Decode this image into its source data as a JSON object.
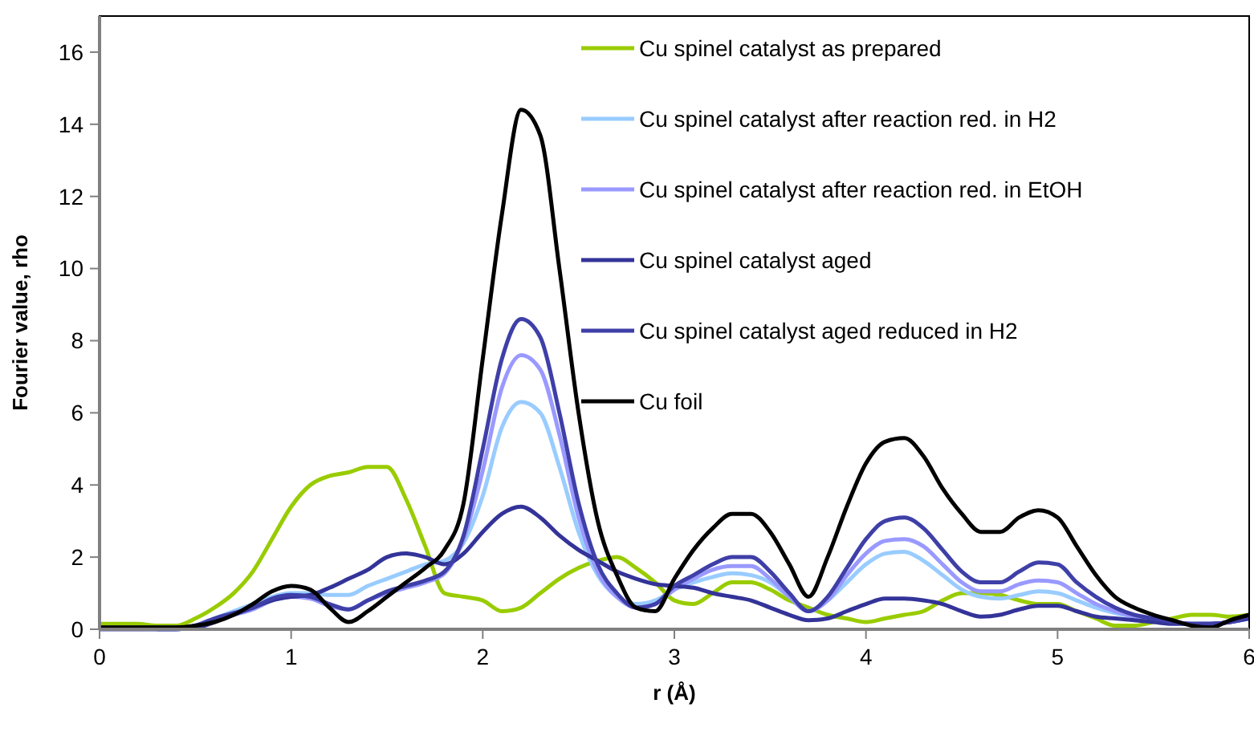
{
  "chart_data": {
    "type": "line",
    "xlabel": "r (Å)",
    "ylabel": "Fourier value, rho",
    "xlim": [
      0,
      6
    ],
    "ylim": [
      0,
      17
    ],
    "xticks": [
      0,
      1,
      2,
      3,
      4,
      5,
      6
    ],
    "yticks": [
      0,
      2,
      4,
      6,
      8,
      10,
      12,
      14,
      16
    ],
    "grid": false,
    "legend": "top right",
    "marker": "none",
    "line_style": "solid",
    "x": [
      0,
      0.1,
      0.2,
      0.3,
      0.4,
      0.5,
      0.6,
      0.7,
      0.8,
      0.9,
      1,
      1.1,
      1.2,
      1.3,
      1.4,
      1.5,
      1.6,
      1.7,
      1.8,
      1.9,
      2,
      2.1,
      2.2,
      2.3,
      2.4,
      2.5,
      2.6,
      2.7,
      2.8,
      2.9,
      3,
      3.1,
      3.2,
      3.3,
      3.4,
      3.5,
      3.6,
      3.7,
      3.8,
      3.9,
      4,
      4.1,
      4.2,
      4.3,
      4.4,
      4.5,
      4.6,
      4.7,
      4.8,
      4.9,
      5,
      5.1,
      5.2,
      5.3,
      5.4,
      5.5,
      5.6,
      5.7,
      5.8,
      5.9,
      6
    ],
    "series": [
      {
        "name": "Cu spinel catalyst as prepared",
        "color": "#99cc00",
        "values": [
          0.15,
          0.15,
          0.15,
          0.1,
          0.1,
          0.3,
          0.6,
          1.0,
          1.6,
          2.5,
          3.4,
          4.0,
          4.25,
          4.35,
          4.5,
          4.5,
          3.6,
          2.3,
          1.0,
          0.9,
          0.8,
          0.5,
          0.6,
          1.0,
          1.4,
          1.7,
          1.9,
          2.0,
          1.7,
          1.3,
          0.8,
          0.7,
          1.0,
          1.3,
          1.3,
          1.1,
          0.8,
          0.6,
          0.4,
          0.3,
          0.2,
          0.3,
          0.4,
          0.5,
          0.8,
          1.0,
          1.0,
          0.95,
          0.8,
          0.7,
          0.7,
          0.5,
          0.3,
          0.1,
          0.1,
          0.2,
          0.3,
          0.4,
          0.4,
          0.35,
          0.4
        ]
      },
      {
        "name": "Cu spinel catalyst after reaction red. in H2",
        "color": "#99ccff",
        "values": [
          null,
          null,
          null,
          0,
          0,
          0.1,
          0.3,
          0.5,
          0.7,
          0.9,
          1.0,
          1.0,
          0.95,
          0.95,
          1.2,
          1.4,
          1.6,
          1.8,
          1.9,
          2.4,
          3.7,
          5.6,
          6.3,
          6.0,
          4.5,
          2.7,
          1.5,
          0.9,
          0.7,
          0.8,
          1.1,
          1.3,
          1.45,
          1.55,
          1.5,
          1.3,
          0.9,
          0.5,
          0.8,
          1.3,
          1.8,
          2.1,
          2.15,
          1.9,
          1.5,
          1.1,
          0.9,
          0.85,
          0.95,
          1.05,
          1.0,
          0.8,
          0.6,
          0.45,
          0.35,
          0.25,
          0.2,
          0.15,
          0.15,
          0.2,
          0.3
        ]
      },
      {
        "name": "Cu spinel catalyst after reaction red. in EtOH",
        "color": "#9999ff",
        "values": [
          null,
          null,
          null,
          0,
          0,
          0.1,
          0.25,
          0.4,
          0.55,
          0.8,
          0.9,
          0.85,
          0.65,
          0.55,
          0.8,
          1.0,
          1.15,
          1.3,
          1.55,
          2.5,
          4.4,
          6.7,
          7.6,
          7.2,
          5.4,
          3.1,
          1.6,
          0.9,
          0.6,
          0.7,
          1.1,
          1.4,
          1.65,
          1.75,
          1.75,
          1.4,
          0.9,
          0.5,
          0.8,
          1.5,
          2.1,
          2.45,
          2.5,
          2.3,
          1.8,
          1.3,
          1.05,
          1.05,
          1.25,
          1.35,
          1.3,
          1.0,
          0.7,
          0.5,
          0.35,
          0.25,
          0.2,
          0.15,
          0.15,
          0.2,
          0.3
        ]
      },
      {
        "name": "Cu spinel catalyst aged",
        "color": "#333399",
        "values": [
          0.05,
          0.05,
          0.05,
          0.05,
          0.05,
          0.05,
          0.2,
          0.4,
          0.6,
          0.8,
          0.9,
          0.95,
          1.15,
          1.4,
          1.65,
          2.0,
          2.1,
          2.0,
          1.8,
          2.1,
          2.7,
          3.2,
          3.4,
          3.1,
          2.6,
          2.2,
          1.9,
          1.6,
          1.4,
          1.25,
          1.2,
          1.15,
          1.0,
          0.9,
          0.8,
          0.6,
          0.4,
          0.25,
          0.3,
          0.5,
          0.7,
          0.85,
          0.85,
          0.8,
          0.7,
          0.5,
          0.35,
          0.4,
          0.55,
          0.65,
          0.65,
          0.5,
          0.35,
          0.3,
          0.25,
          0.2,
          0.15,
          0.15,
          0.15,
          0.2,
          0.3
        ]
      },
      {
        "name": "Cu spinel catalyst aged reduced in H2",
        "color": "#3f3fa8",
        "values": [
          0,
          0,
          0,
          0,
          0,
          0.1,
          0.3,
          0.45,
          0.6,
          0.85,
          0.95,
          0.9,
          0.7,
          0.55,
          0.8,
          1.05,
          1.2,
          1.35,
          1.6,
          2.6,
          5.0,
          7.5,
          8.6,
          8.1,
          6.0,
          3.5,
          1.8,
          1.0,
          0.6,
          0.7,
          1.2,
          1.5,
          1.8,
          2.0,
          2.0,
          1.6,
          1.0,
          0.5,
          0.9,
          1.7,
          2.5,
          3.0,
          3.1,
          2.8,
          2.2,
          1.6,
          1.3,
          1.3,
          1.6,
          1.85,
          1.8,
          1.3,
          0.9,
          0.6,
          0.4,
          0.3,
          0.2,
          0.15,
          0.15,
          0.2,
          0.35
        ]
      },
      {
        "name": "Cu foil",
        "color": "#000000",
        "values": [
          0.05,
          0.05,
          0.05,
          0.05,
          0.05,
          0.1,
          0.2,
          0.4,
          0.7,
          1.05,
          1.2,
          1.1,
          0.6,
          0.2,
          0.5,
          0.9,
          1.3,
          1.7,
          2.2,
          3.5,
          7.5,
          11.5,
          14.4,
          13.7,
          10,
          6,
          3,
          1.5,
          0.6,
          0.5,
          1.4,
          2.2,
          2.8,
          3.2,
          3.2,
          2.7,
          1.8,
          0.9,
          2.0,
          3.4,
          4.6,
          5.2,
          5.3,
          4.8,
          3.9,
          3.2,
          2.7,
          2.7,
          3.1,
          3.3,
          3.1,
          2.3,
          1.5,
          0.9,
          0.6,
          0.4,
          0.25,
          0.1,
          0.05,
          0.25,
          0.4
        ]
      }
    ]
  }
}
